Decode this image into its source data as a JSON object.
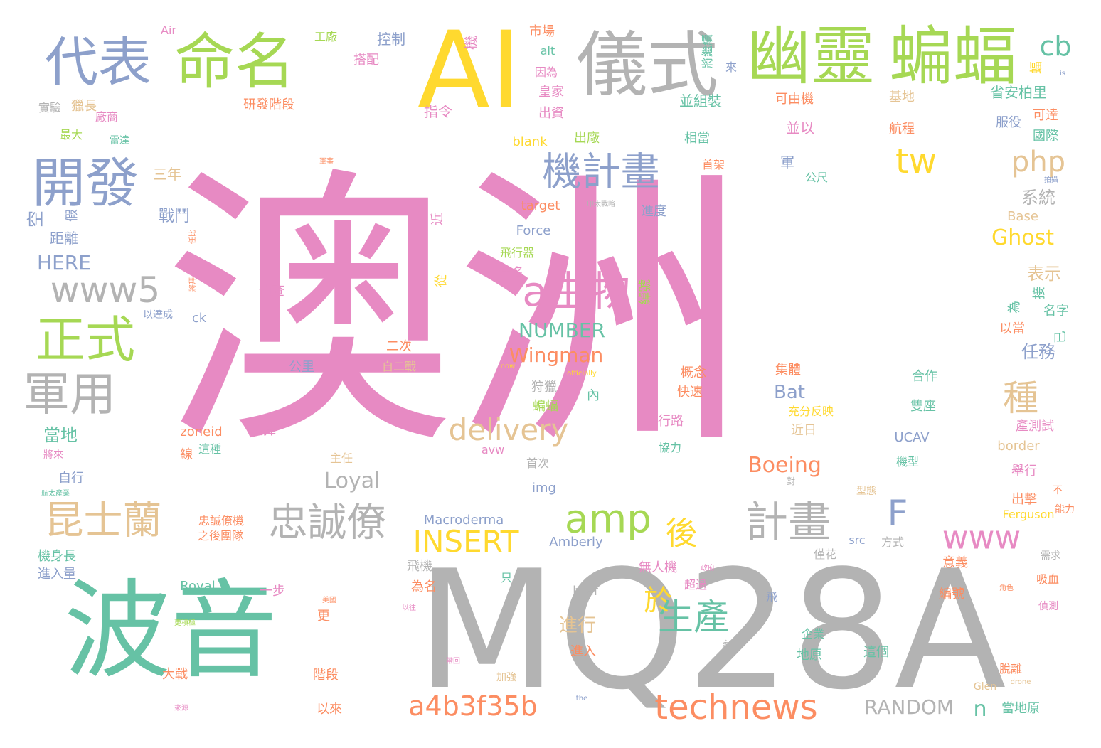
{
  "palette": {
    "pink": "#e78ac3",
    "gray": "#b3b3b3",
    "teal": "#66c2a5",
    "green": "#a6d854",
    "yellow": "#ffd92f",
    "blue": "#8da0cb",
    "orange": "#fc8d62",
    "tan": "#e5c494"
  },
  "words": [
    {
      "text": "澳洲",
      "color": "pink"
    },
    {
      "text": "MQ28A",
      "color": "gray"
    },
    {
      "text": "波音",
      "color": "teal"
    },
    {
      "text": "AI",
      "color": "yellow"
    },
    {
      "text": "儀式",
      "color": "gray"
    },
    {
      "text": "幽靈",
      "color": "green"
    },
    {
      "text": "蝙蝠",
      "color": "green"
    },
    {
      "text": "命名",
      "color": "green"
    },
    {
      "text": "代表",
      "color": "blue"
    },
    {
      "text": "開發",
      "color": "blue"
    },
    {
      "text": "機計畫",
      "color": "blue"
    },
    {
      "text": "正式",
      "color": "green"
    },
    {
      "text": "www5",
      "color": "gray"
    },
    {
      "text": "軍用",
      "color": "gray"
    },
    {
      "text": "昆士蘭",
      "color": "tan"
    },
    {
      "text": "忠誠僚",
      "color": "gray"
    },
    {
      "text": "a生物",
      "color": "pink"
    },
    {
      "text": "delivery",
      "color": "tan"
    },
    {
      "text": "amp",
      "color": "green"
    },
    {
      "text": "計畫",
      "color": "gray"
    },
    {
      "text": "生產",
      "color": "teal"
    },
    {
      "text": "technews",
      "color": "orange"
    },
    {
      "text": "a4b3f35b",
      "color": "orange"
    },
    {
      "text": "INSERT",
      "color": "yellow"
    },
    {
      "text": "後",
      "color": "yellow"
    },
    {
      "text": "於",
      "color": "yellow"
    },
    {
      "text": "F",
      "color": "blue"
    },
    {
      "text": "www",
      "color": "pink"
    },
    {
      "text": "tw",
      "color": "yellow"
    },
    {
      "text": "php",
      "color": "tan"
    },
    {
      "text": "cb",
      "color": "teal"
    },
    {
      "text": "種",
      "color": "tan"
    },
    {
      "text": "Ghost",
      "color": "yellow"
    },
    {
      "text": "NUMBER",
      "color": "teal"
    },
    {
      "text": "Wingman",
      "color": "orange"
    },
    {
      "text": "Boeing",
      "color": "orange"
    },
    {
      "text": "Loyal",
      "color": "gray"
    },
    {
      "text": "RANDOM",
      "color": "gray"
    },
    {
      "text": "n",
      "color": "teal"
    },
    {
      "text": "HERE",
      "color": "blue"
    },
    {
      "text": "Bat",
      "color": "blue"
    },
    {
      "text": "進行",
      "color": "tan"
    },
    {
      "text": "表示",
      "color": "tan"
    },
    {
      "text": "任務",
      "color": "blue"
    },
    {
      "text": "系統",
      "color": "gray"
    },
    {
      "text": "當地",
      "color": "teal"
    },
    {
      "text": "戰鬥",
      "color": "blue"
    },
    {
      "text": "三年",
      "color": "tan"
    },
    {
      "text": "空",
      "color": "blue"
    },
    {
      "text": "距離",
      "color": "blue"
    },
    {
      "text": "假",
      "color": "blue"
    },
    {
      "text": "研發階段",
      "color": "orange"
    },
    {
      "text": "指令",
      "color": "pink"
    },
    {
      "text": "控制",
      "color": "blue"
    },
    {
      "text": "搭配",
      "color": "pink"
    },
    {
      "text": "工廠",
      "color": "green"
    },
    {
      "text": "Air",
      "color": "pink"
    },
    {
      "text": "實驗",
      "color": "gray"
    },
    {
      "text": "獵長",
      "color": "tan"
    },
    {
      "text": "廠商",
      "color": "pink"
    },
    {
      "text": "最大",
      "color": "green"
    },
    {
      "text": "雷達",
      "color": "teal"
    },
    {
      "text": "機",
      "color": "pink"
    },
    {
      "text": "市場",
      "color": "orange"
    },
    {
      "text": "alt",
      "color": "teal"
    },
    {
      "text": "因為",
      "color": "pink"
    },
    {
      "text": "皇家",
      "color": "pink"
    },
    {
      "text": "出資",
      "color": "pink"
    },
    {
      "text": "blank",
      "color": "yellow"
    },
    {
      "text": "出廠",
      "color": "green"
    },
    {
      "text": "將繼續",
      "color": "teal"
    },
    {
      "text": "來",
      "color": "blue"
    },
    {
      "text": "並組裝",
      "color": "teal"
    },
    {
      "text": "相當",
      "color": "teal"
    },
    {
      "text": "首架",
      "color": "orange"
    },
    {
      "text": "並以",
      "color": "pink"
    },
    {
      "text": "可由機",
      "color": "orange"
    },
    {
      "text": "基地",
      "color": "tan"
    },
    {
      "text": "航程",
      "color": "orange"
    },
    {
      "text": "省安柏里",
      "color": "teal"
    },
    {
      "text": "服役",
      "color": "blue"
    },
    {
      "text": "可達",
      "color": "orange"
    },
    {
      "text": "國際",
      "color": "teal"
    },
    {
      "text": "軍",
      "color": "blue"
    },
    {
      "text": "公尺",
      "color": "teal"
    },
    {
      "text": "target",
      "color": "orange"
    },
    {
      "text": "印太戰略",
      "color": "gray"
    },
    {
      "text": "進度",
      "color": "blue"
    },
    {
      "text": "Force",
      "color": "blue"
    },
    {
      "text": "飛行器",
      "color": "green"
    },
    {
      "text": "出名",
      "color": "pink"
    },
    {
      "text": "近",
      "color": "pink"
    },
    {
      "text": "從",
      "color": "yellow"
    },
    {
      "text": "偵查",
      "color": "pink"
    },
    {
      "text": "綽號",
      "color": "green"
    },
    {
      "text": "Base",
      "color": "tan"
    },
    {
      "text": "接",
      "color": "teal"
    },
    {
      "text": "為",
      "color": "teal"
    },
    {
      "text": "名字",
      "color": "teal"
    },
    {
      "text": "以當",
      "color": "orange"
    },
    {
      "text": "已",
      "color": "teal"
    },
    {
      "text": "以達成",
      "color": "blue"
    },
    {
      "text": "ck",
      "color": "blue"
    },
    {
      "text": "任比",
      "color": "orange"
    },
    {
      "text": "將拜",
      "color": "orange"
    },
    {
      "text": "公里",
      "color": "blue"
    },
    {
      "text": "二次",
      "color": "orange"
    },
    {
      "text": "自二戰",
      "color": "tan"
    },
    {
      "text": "now",
      "color": "yellow"
    },
    {
      "text": "officially",
      "color": "yellow"
    },
    {
      "text": "狩獵",
      "color": "gray"
    },
    {
      "text": "內",
      "color": "teal"
    },
    {
      "text": "蝙蝠",
      "color": "green"
    },
    {
      "text": "概念",
      "color": "orange"
    },
    {
      "text": "快速",
      "color": "orange"
    },
    {
      "text": "集體",
      "color": "orange"
    },
    {
      "text": "合作",
      "color": "teal"
    },
    {
      "text": "雙座",
      "color": "teal"
    },
    {
      "text": "充分反映",
      "color": "yellow"
    },
    {
      "text": "近日",
      "color": "tan"
    },
    {
      "text": "行路",
      "color": "pink"
    },
    {
      "text": "協力",
      "color": "teal"
    },
    {
      "text": "zoneid",
      "color": "orange"
    },
    {
      "text": "選擇",
      "color": "pink"
    },
    {
      "text": "線",
      "color": "orange"
    },
    {
      "text": "這種",
      "color": "teal"
    },
    {
      "text": "將來",
      "color": "pink"
    },
    {
      "text": "自行",
      "color": "blue"
    },
    {
      "text": "主任",
      "color": "tan"
    },
    {
      "text": "avw",
      "color": "pink"
    },
    {
      "text": "UCAV",
      "color": "blue"
    },
    {
      "text": "border",
      "color": "tan"
    },
    {
      "text": "產測試",
      "color": "pink"
    },
    {
      "text": "機型",
      "color": "teal"
    },
    {
      "text": "舉行",
      "color": "pink"
    },
    {
      "text": "首次",
      "color": "gray"
    },
    {
      "text": "img",
      "color": "blue"
    },
    {
      "text": "對",
      "color": "gray"
    },
    {
      "text": "不",
      "color": "orange"
    },
    {
      "text": "能力",
      "color": "orange"
    },
    {
      "text": "型態",
      "color": "tan"
    },
    {
      "text": "出擊",
      "color": "orange"
    },
    {
      "text": "Ferguson",
      "color": "yellow"
    },
    {
      "text": "忠誠僚機",
      "color": "orange"
    },
    {
      "text": "之後團隊",
      "color": "orange"
    },
    {
      "text": "Macroderma",
      "color": "blue"
    },
    {
      "text": "Amberly",
      "color": "blue"
    },
    {
      "text": "src",
      "color": "blue"
    },
    {
      "text": "方式",
      "color": "gray"
    },
    {
      "text": "需求",
      "color": "gray"
    },
    {
      "text": "機身長",
      "color": "teal"
    },
    {
      "text": "進入量",
      "color": "blue"
    },
    {
      "text": "飛機",
      "color": "gray"
    },
    {
      "text": "只",
      "color": "teal"
    },
    {
      "text": "為名",
      "color": "orange"
    },
    {
      "text": "無人機",
      "color": "pink"
    },
    {
      "text": "政府",
      "color": "pink"
    },
    {
      "text": "超過",
      "color": "pink"
    },
    {
      "text": "僅花",
      "color": "gray"
    },
    {
      "text": "意義",
      "color": "orange"
    },
    {
      "text": "吸血",
      "color": "orange"
    },
    {
      "text": "Royal",
      "color": "teal"
    },
    {
      "text": "一步",
      "color": "pink"
    },
    {
      "text": "href",
      "color": "gray"
    },
    {
      "text": "飛",
      "color": "blue"
    },
    {
      "text": "編號",
      "color": "orange"
    },
    {
      "text": "角色",
      "color": "orange"
    },
    {
      "text": "偵測",
      "color": "pink"
    },
    {
      "text": "美國",
      "color": "orange"
    },
    {
      "text": "以往",
      "color": "pink"
    },
    {
      "text": "更",
      "color": "orange"
    },
    {
      "text": "更積極",
      "color": "green"
    },
    {
      "text": "進入",
      "color": "orange"
    },
    {
      "text": "企業",
      "color": "teal"
    },
    {
      "text": "家",
      "color": "gray"
    },
    {
      "text": "地原",
      "color": "teal"
    },
    {
      "text": "這個",
      "color": "teal"
    },
    {
      "text": "大戰",
      "color": "orange"
    },
    {
      "text": "階段",
      "color": "orange"
    },
    {
      "text": "加強",
      "color": "tan"
    },
    {
      "text": "帶回",
      "color": "pink"
    },
    {
      "text": "脫離",
      "color": "orange"
    },
    {
      "text": "Glen",
      "color": "tan"
    },
    {
      "text": "drone",
      "color": "tan"
    },
    {
      "text": "當地原",
      "color": "teal"
    },
    {
      "text": "以來",
      "color": "orange"
    },
    {
      "text": "the",
      "color": "blue"
    },
    {
      "text": "來源",
      "color": "pink"
    },
    {
      "text": "航太產業",
      "color": "teal"
    },
    {
      "text": "軍事",
      "color": "orange"
    },
    {
      "text": "拍攝",
      "color": "blue"
    },
    {
      "text": "下",
      "color": "pink"
    },
    {
      "text": "is",
      "color": "blue"
    },
    {
      "text": "蝠",
      "color": "yellow"
    }
  ]
}
